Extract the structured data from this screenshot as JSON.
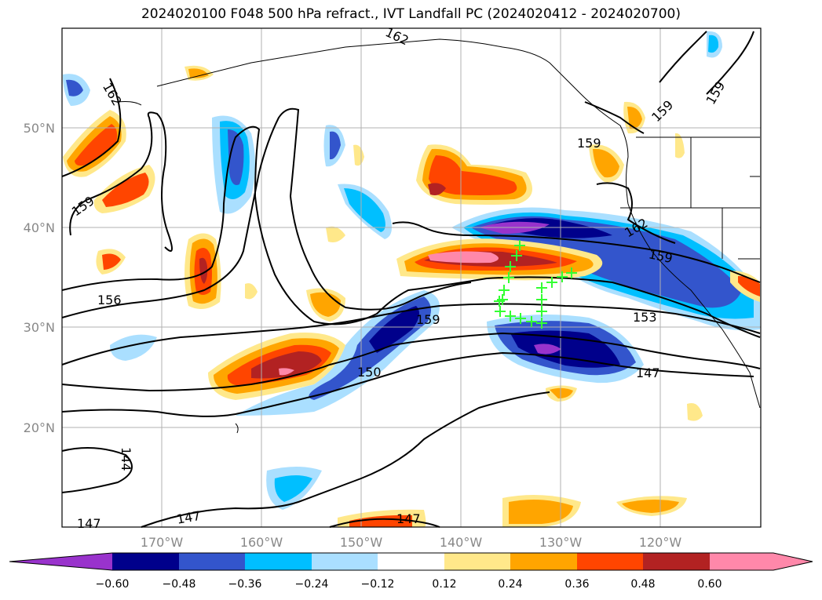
{
  "title": "2024020100 F048 500 hPa refract., IVT Landfall PC (2024020412 - 2024020700)",
  "map": {
    "lon_labels": [
      "170°W",
      "160°W",
      "150°W",
      "140°W",
      "130°W",
      "120°W"
    ],
    "lat_labels": [
      "50°N",
      "40°N",
      "30°N",
      "20°N"
    ],
    "contour_labels": [
      "162",
      "162",
      "162",
      "159",
      "159",
      "159",
      "159",
      "159",
      "159",
      "156",
      "153",
      "150",
      "147",
      "147",
      "147",
      "147",
      "144"
    ],
    "marker_color": "#33ff33",
    "contour_color": "#000000"
  },
  "colorbar": {
    "ticks": [
      "−0.60",
      "−0.48",
      "−0.36",
      "−0.24",
      "−0.12",
      "0.12",
      "0.24",
      "0.36",
      "0.48",
      "0.60"
    ],
    "colors": [
      "#9933cc",
      "#00008b",
      "#3355cc",
      "#00bfff",
      "#aadfff",
      "#ffffff",
      "#ffe88a",
      "#ffa500",
      "#ff4500",
      "#b22222",
      "#ff88aa"
    ]
  }
}
